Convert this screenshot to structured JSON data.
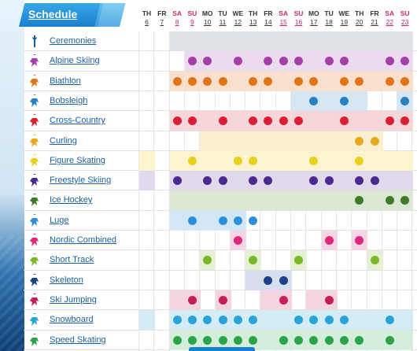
{
  "header": {
    "title": "Schedule"
  },
  "days": [
    {
      "dow": "TH",
      "date": "6",
      "weekend": false
    },
    {
      "dow": "FR",
      "date": "7",
      "weekend": false
    },
    {
      "dow": "SA",
      "date": "8",
      "weekend": true
    },
    {
      "dow": "SU",
      "date": "9",
      "weekend": true
    },
    {
      "dow": "MO",
      "date": "10",
      "weekend": false
    },
    {
      "dow": "TU",
      "date": "11",
      "weekend": false
    },
    {
      "dow": "WE",
      "date": "12",
      "weekend": false
    },
    {
      "dow": "TH",
      "date": "13",
      "weekend": false
    },
    {
      "dow": "FR",
      "date": "14",
      "weekend": false
    },
    {
      "dow": "SA",
      "date": "15",
      "weekend": true
    },
    {
      "dow": "SU",
      "date": "16",
      "weekend": true
    },
    {
      "dow": "MO",
      "date": "17",
      "weekend": false
    },
    {
      "dow": "TU",
      "date": "18",
      "weekend": false
    },
    {
      "dow": "WE",
      "date": "19",
      "weekend": false
    },
    {
      "dow": "TH",
      "date": "20",
      "weekend": false
    },
    {
      "dow": "FR",
      "date": "21",
      "weekend": false
    },
    {
      "dow": "SA",
      "date": "22",
      "weekend": true
    },
    {
      "dow": "SU",
      "date": "23",
      "weekend": true
    }
  ],
  "sports": [
    {
      "name": "Ceremonies",
      "icon": "ceremonies-icon",
      "color": "#1a5f9e",
      "bg": "#dfe3e6",
      "shaded": [
        2,
        3,
        4,
        5,
        6,
        7,
        8,
        9,
        10,
        11,
        12,
        13,
        14,
        15,
        16,
        17
      ],
      "dots": []
    },
    {
      "name": "Alpine Skiing",
      "icon": "alpine-skiing-icon",
      "color": "#a43ea8",
      "bg": "#ecdbee",
      "shaded": [
        3,
        4,
        5,
        6,
        7,
        8,
        9,
        10,
        11,
        12,
        13,
        14,
        15,
        16,
        17
      ],
      "dots": [
        3,
        4,
        6,
        8,
        9,
        10,
        12,
        13,
        16,
        17
      ]
    },
    {
      "name": "Biathlon",
      "icon": "biathlon-icon",
      "color": "#e07418",
      "bg": "#f8e0cc",
      "shaded": [
        2,
        3,
        4,
        5,
        6,
        7,
        8,
        9,
        10,
        11,
        12,
        13,
        14,
        15,
        16,
        17
      ],
      "dots": [
        2,
        3,
        4,
        5,
        7,
        8,
        10,
        11,
        13,
        14,
        16,
        17
      ]
    },
    {
      "name": "Bobsleigh",
      "icon": "bobsleigh-icon",
      "color": "#2680c2",
      "bg": "#d6e7f3",
      "shaded": [
        10,
        11,
        12,
        13,
        14,
        17
      ],
      "dots": [
        11,
        13,
        17
      ]
    },
    {
      "name": "Cross-Country",
      "icon": "cross-country-icon",
      "color": "#d91f32",
      "bg": "#f6d6d9",
      "shaded": [
        2,
        3,
        4,
        5,
        6,
        7,
        8,
        9,
        10,
        11,
        12,
        13,
        14,
        15,
        16,
        17
      ],
      "dots": [
        2,
        3,
        5,
        7,
        8,
        9,
        10,
        13,
        16,
        17
      ]
    },
    {
      "name": "Curling",
      "icon": "curling-icon",
      "color": "#e8a81e",
      "bg": "#fbefd2",
      "shaded": [
        4,
        5,
        6,
        7,
        8,
        9,
        10,
        11,
        12,
        13,
        14,
        15
      ],
      "dots": [
        14,
        15
      ]
    },
    {
      "name": "Figure Skating",
      "icon": "figure-skating-icon",
      "color": "#e8d01e",
      "bg": "#fbf4cf",
      "shaded": [
        0,
        2,
        3,
        4,
        5,
        6,
        7,
        8,
        9,
        10,
        11,
        12,
        13,
        14,
        15,
        16,
        17
      ],
      "dots": [
        3,
        6,
        7,
        11,
        14
      ]
    },
    {
      "name": "Freestyle Skiing",
      "icon": "freestyle-skiing-icon",
      "color": "#4a2a8e",
      "bg": "#e1d9ee",
      "shaded": [
        0,
        2,
        3,
        4,
        5,
        6,
        7,
        8,
        9,
        10,
        11,
        12,
        13,
        14,
        15,
        16,
        17
      ],
      "dots": [
        2,
        4,
        5,
        7,
        8,
        11,
        12,
        14,
        15
      ]
    },
    {
      "name": "Ice Hockey",
      "icon": "ice-hockey-icon",
      "color": "#3e7a2a",
      "bg": "#dbe8d3",
      "shaded": [
        2,
        3,
        4,
        5,
        6,
        7,
        8,
        9,
        10,
        11,
        12,
        13,
        14,
        15,
        16,
        17
      ],
      "dots": [
        14,
        16,
        17
      ]
    },
    {
      "name": "Luge",
      "icon": "luge-icon",
      "color": "#2f8fd8",
      "bg": "#d3e8f6",
      "shaded": [
        2,
        3,
        4,
        5,
        6
      ],
      "dots": [
        3,
        5,
        6,
        7
      ]
    },
    {
      "name": "Nordic Combined",
      "icon": "nordic-combined-icon",
      "color": "#e0287a",
      "bg": "#f8d5e4",
      "shaded": [
        6,
        12,
        14
      ],
      "dots": [
        6,
        12,
        14
      ]
    },
    {
      "name": "Short Track",
      "icon": "short-track-icon",
      "color": "#7ab82a",
      "bg": "#e6f0d5",
      "shaded": [
        4,
        7,
        10,
        15
      ],
      "dots": [
        4,
        7,
        10,
        15
      ]
    },
    {
      "name": "Skeleton",
      "icon": "skeleton-icon",
      "color": "#1e3f8a",
      "bg": "#d6deef",
      "shaded": [
        7,
        8,
        9
      ],
      "dots": [
        8,
        9
      ]
    },
    {
      "name": "Ski Jumping",
      "icon": "ski-jumping-icon",
      "color": "#c61e58",
      "bg": "#f3d4df",
      "shaded": [
        2,
        3,
        5,
        8,
        9,
        11,
        12
      ],
      "dots": [
        3,
        5,
        9,
        12
      ]
    },
    {
      "name": "Snowboard",
      "icon": "snowboard-icon",
      "color": "#2aa3d8",
      "bg": "#d4ecf6",
      "shaded": [
        0,
        2,
        3,
        4,
        5,
        6,
        7,
        8,
        9,
        10,
        11,
        12,
        13,
        14,
        15,
        16,
        17
      ],
      "dots": [
        2,
        3,
        4,
        5,
        6,
        7,
        10,
        11,
        12,
        13,
        16
      ]
    },
    {
      "name": "Speed Skating",
      "icon": "speed-skating-icon",
      "color": "#2aa34a",
      "bg": "#d5eedc",
      "shaded": [
        2,
        3,
        4,
        5,
        6,
        7,
        8,
        9,
        10,
        11,
        12,
        13,
        14,
        15,
        16,
        17
      ],
      "dots": [
        2,
        3,
        4,
        5,
        6,
        7,
        9,
        10,
        11,
        12,
        13,
        14,
        16
      ]
    }
  ]
}
